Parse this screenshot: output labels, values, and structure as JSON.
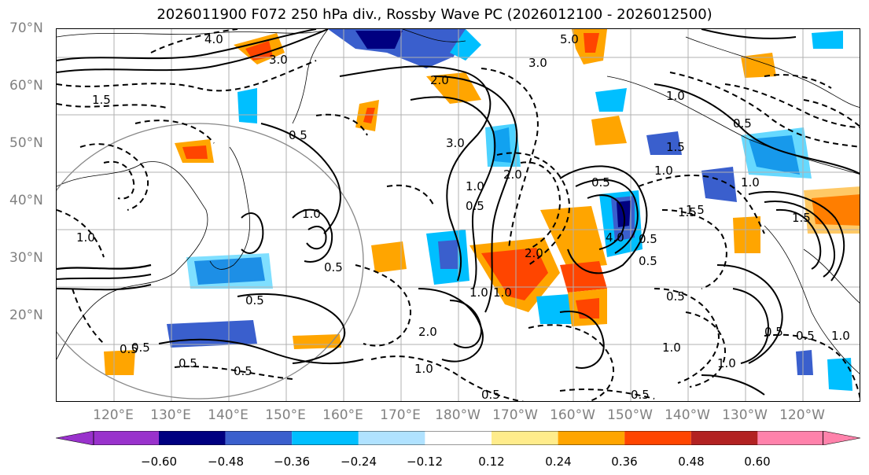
{
  "title": "2026011900 F072 250 hPa div., Rossby Wave PC (2026012100 - 2026012500)",
  "lat_labels": [
    "70°N",
    "60°N",
    "50°N",
    "40°N",
    "30°N",
    "20°N"
  ],
  "lon_labels": [
    "120°E",
    "130°E",
    "140°E",
    "150°E",
    "160°E",
    "170°E",
    "180°W",
    "170°W",
    "160°W",
    "150°W",
    "140°W",
    "130°W",
    "120°W"
  ],
  "colorbar": {
    "colors": [
      "#9932cc",
      "#000080",
      "#3a5fcd",
      "#00bfff",
      "#b0e2ff",
      "#ffffff",
      "#ffec8b",
      "#ffa500",
      "#ff4500",
      "#b22222",
      "#ff82ab"
    ],
    "tick_labels": [
      "−0.60",
      "−0.48",
      "−0.36",
      "−0.24",
      "−0.12",
      "0.12",
      "0.24",
      "0.36",
      "0.48",
      "0.60"
    ]
  },
  "contour_labels": [
    "4.0",
    "3.0",
    "2.0",
    "3.0",
    "5.0",
    "1.5",
    "0.5",
    "1.0",
    "1.0",
    "0.5",
    "1.0",
    "2.0",
    "0.5",
    "0.5",
    "3.0",
    "2.0",
    "1.5",
    "1.0",
    "1.0",
    "0.5",
    "0.5",
    "1.5",
    "1.0",
    "0.5",
    "0.5",
    "1.0",
    "4.0",
    "0.5",
    "1.0",
    "0.5",
    "0.5",
    "0.5",
    "1.0",
    "0.5",
    "1.0",
    "0.5",
    "0.5",
    "2.0",
    "0.5",
    "1.0",
    "1.5",
    "1.0",
    "0.5",
    "1.5"
  ]
}
